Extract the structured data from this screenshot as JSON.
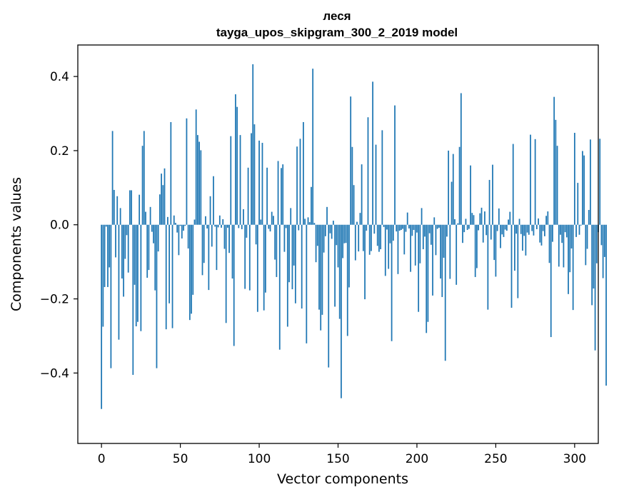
{
  "chart_data": {
    "type": "bar",
    "title": "леся",
    "subtitle": "tayga_upos_skipgram_300_2_2019 model",
    "xlabel": "Vector components",
    "ylabel": "Components values",
    "xlim": [
      -15,
      315
    ],
    "ylim": [
      -0.59,
      0.485
    ],
    "x_ticks": [
      0,
      50,
      100,
      150,
      200,
      250,
      300
    ],
    "x_tick_labels": [
      "0",
      "50",
      "100",
      "150",
      "200",
      "250",
      "300"
    ],
    "y_ticks": [
      -0.4,
      -0.2,
      0.0,
      0.2,
      0.4
    ],
    "y_tick_labels": [
      "−0.4",
      "−0.2",
      "0.0",
      "0.2",
      "0.4"
    ],
    "bar_color": "#1f77b4",
    "grid": false,
    "values": [
      -0.497,
      -0.275,
      -0.168,
      -0.005,
      -0.168,
      -0.115,
      -0.387,
      0.253,
      0.094,
      -0.088,
      0.077,
      -0.31,
      0.045,
      -0.145,
      -0.194,
      -0.092,
      -0.028,
      -0.129,
      0.093,
      0.093,
      -0.405,
      -0.162,
      -0.274,
      -0.262,
      0.081,
      -0.287,
      0.213,
      0.253,
      0.035,
      -0.143,
      -0.122,
      0.048,
      -0.019,
      -0.05,
      -0.177,
      -0.387,
      -0.072,
      0.082,
      0.138,
      0.107,
      0.152,
      -0.282,
      0.021,
      -0.212,
      0.277,
      -0.279,
      0.025,
      0.005,
      -0.021,
      -0.082,
      -0.003,
      -0.037,
      -0.016,
      -0.003,
      0.287,
      -0.064,
      -0.257,
      -0.24,
      -0.189,
      0.014,
      0.311,
      0.242,
      0.224,
      0.201,
      -0.136,
      -0.103,
      0.023,
      -0.01,
      -0.176,
      0.077,
      -0.059,
      0.131,
      -0.005,
      -0.122,
      -0.007,
      0.025,
      -0.008,
      0.015,
      -0.065,
      -0.265,
      -0.008,
      -0.076,
      0.239,
      -0.145,
      -0.327,
      0.352,
      0.318,
      -0.009,
      0.242,
      -0.012,
      0.042,
      -0.173,
      -0.035,
      0.154,
      -0.177,
      0.247,
      0.433,
      0.271,
      -0.053,
      -0.235,
      0.227,
      0.014,
      0.221,
      -0.231,
      -0.183,
      0.154,
      -0.011,
      -0.018,
      0.035,
      0.024,
      -0.094,
      -0.141,
      0.172,
      -0.337,
      0.153,
      0.163,
      -0.073,
      -0.009,
      -0.275,
      -0.155,
      0.045,
      -0.174,
      -0.11,
      -0.212,
      0.211,
      -0.015,
      0.232,
      -0.226,
      0.277,
      0.016,
      -0.32,
      0.02,
      0.007,
      0.102,
      0.421,
      0.005,
      -0.101,
      -0.057,
      -0.229,
      -0.285,
      -0.243,
      -0.075,
      -0.031,
      0.048,
      -0.385,
      -0.023,
      -0.038,
      0.011,
      -0.221,
      -0.055,
      -0.115,
      -0.254,
      -0.468,
      -0.09,
      -0.05,
      -0.049,
      -0.3,
      -0.169,
      0.346,
      0.21,
      0.107,
      -0.096,
      0.008,
      -0.072,
      0.032,
      0.163,
      -0.071,
      -0.201,
      -0.016,
      0.29,
      -0.081,
      -0.071,
      0.386,
      -0.024,
      0.216,
      -0.057,
      -0.073,
      -0.066,
      0.255,
      -0.006,
      -0.138,
      -0.013,
      -0.119,
      -0.05,
      -0.314,
      -0.043,
      0.322,
      -0.018,
      -0.133,
      -0.016,
      -0.014,
      -0.011,
      -0.08,
      -0.019,
      0.033,
      -0.01,
      -0.127,
      -0.03,
      -0.014,
      -0.11,
      -0.021,
      -0.235,
      -0.104,
      0.045,
      -0.066,
      -0.032,
      -0.292,
      -0.262,
      -0.023,
      -0.054,
      -0.191,
      0.02,
      -0.082,
      -0.011,
      -0.008,
      -0.145,
      -0.195,
      -0.089,
      -0.367,
      -0.032,
      0.2,
      -0.146,
      0.116,
      0.191,
      0.015,
      -0.162,
      0.004,
      0.21,
      0.355,
      -0.049,
      -0.02,
      0.016,
      -0.014,
      -0.011,
      0.16,
      0.032,
      0.026,
      -0.141,
      -0.117,
      -0.015,
      0.031,
      0.046,
      -0.048,
      0.036,
      -0.028,
      -0.229,
      0.121,
      -0.04,
      0.162,
      -0.095,
      -0.14,
      -0.017,
      0.044,
      -0.063,
      -0.026,
      -0.033,
      -0.013,
      -0.016,
      0.014,
      0.035,
      -0.224,
      0.218,
      -0.124,
      -0.024,
      -0.198,
      0.016,
      -0.025,
      -0.07,
      -0.03,
      -0.083,
      -0.021,
      -0.027,
      0.243,
      -0.017,
      -0.029,
      0.231,
      -0.012,
      0.017,
      -0.048,
      -0.056,
      -0.017,
      -0.031,
      0.024,
      0.036,
      -0.103,
      -0.303,
      -0.046,
      0.345,
      0.283,
      0.213,
      -0.113,
      -0.027,
      -0.049,
      -0.115,
      -0.02,
      -0.034,
      -0.187,
      -0.128,
      -0.064,
      -0.23,
      0.248,
      -0.033,
      0.113,
      -0.027,
      -0.002,
      0.199,
      0.187,
      -0.109,
      -0.065,
      0.04,
      0.23,
      -0.217,
      -0.172,
      -0.339,
      -0.104,
      -0.02,
      0.232,
      -0.055,
      -0.144,
      -0.087,
      -0.434
    ]
  }
}
